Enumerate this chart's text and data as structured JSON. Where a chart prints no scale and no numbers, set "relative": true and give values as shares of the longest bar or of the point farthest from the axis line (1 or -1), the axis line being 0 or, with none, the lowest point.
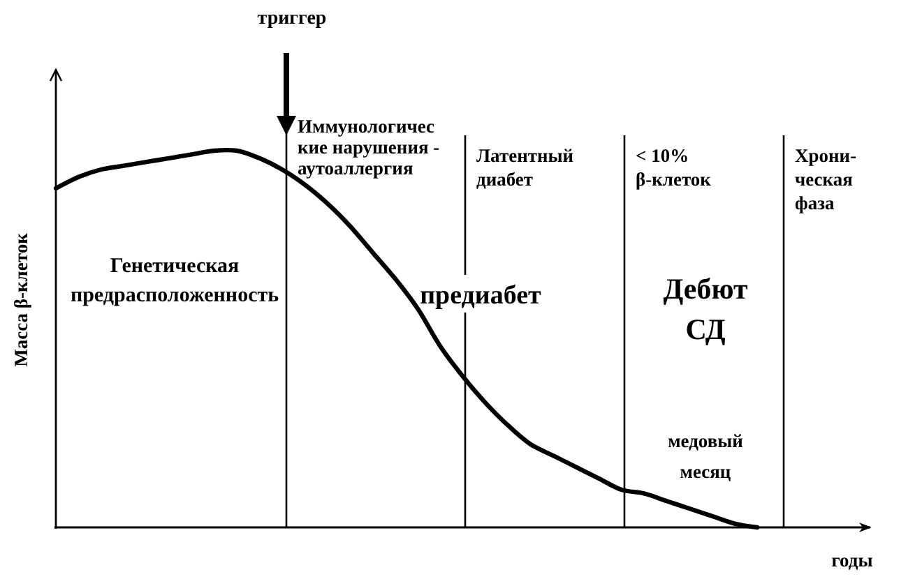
{
  "chart_data": {
    "type": "line",
    "relative": true,
    "grid": "x",
    "xlabel": "годы",
    "ylabel": "Масса β-клеток",
    "categories": [
      null,
      null,
      null,
      null,
      null,
      null,
      null,
      null,
      null,
      null,
      null,
      null,
      null,
      null,
      null,
      null,
      null,
      null,
      null,
      null,
      null,
      null,
      null,
      null,
      null,
      null,
      null,
      null,
      null,
      null,
      null,
      null,
      null,
      null,
      null,
      null,
      null
    ],
    "series": [
      {
        "color": "#000000",
        "values": [
          0.9,
          0.93,
          0.95,
          0.96,
          0.97,
          0.98,
          0.99,
          1,
          1,
          0.98,
          0.95,
          0.91,
          0.86,
          0.8,
          0.73,
          0.66,
          0.58,
          0.48,
          0.4,
          0.33,
          0.27,
          0.22,
          0.19,
          0.16,
          0.13,
          0.1,
          0.09,
          0.07,
          0.05,
          0.03,
          0.01,
          0,
          null,
          null,
          null,
          null,
          null
        ]
      }
    ],
    "annotations": [
      "триггер",
      "Иммунологичес\nкие нарушения -\nаутоаллергия",
      "Латентный\nдиабет",
      "< 10%\nβ-клеток",
      "Хрони-\nческая\nфаза",
      "Генетическая\nпредрасположенность",
      "предиабет",
      "Дебют\nСД",
      "медовый\nмесяц"
    ]
  }
}
